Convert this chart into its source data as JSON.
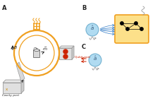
{
  "bg_color": "#ffffff",
  "orange_color": "#f0a020",
  "orange_fill": "#fce08a",
  "blue_circle_fill": "#a8d8f0",
  "blue_circle_edge": "#6aabcc",
  "gray_color": "#999999",
  "gray_fill": "#cccccc",
  "gray_fill2": "#e0e0e0",
  "red_color": "#cc2200",
  "black_color": "#222222",
  "dark_gray": "#666666",
  "label_A": "A",
  "label_B": "B",
  "label_C": "C",
  "label_cavity": "Cavity port",
  "label_qubit": "Qubit port",
  "label_B_arrow": "B",
  "yellow_box_fill": "#fce08a",
  "yellow_box_edge": "#f0a020",
  "blue_arrow_color": "#4488cc",
  "squig_color": "#999999"
}
